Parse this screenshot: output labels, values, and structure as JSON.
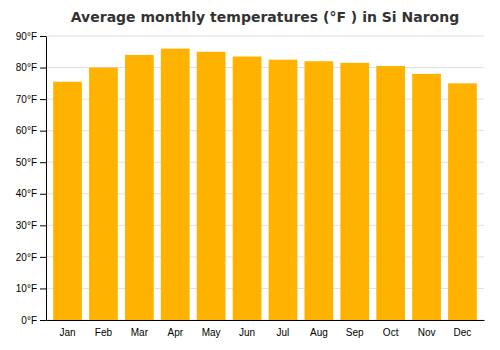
{
  "chart_data": {
    "type": "bar",
    "title": "Average monthly temperatures (°F ) in Si Narong",
    "categories": [
      "Jan",
      "Feb",
      "Mar",
      "Apr",
      "May",
      "Jun",
      "Jul",
      "Aug",
      "Sep",
      "Oct",
      "Nov",
      "Dec"
    ],
    "values": [
      75.5,
      80.0,
      84.0,
      86.0,
      85.0,
      83.5,
      82.5,
      82.0,
      81.5,
      80.5,
      78.0,
      75.0
    ],
    "color": "#FFB300",
    "ylim": [
      0,
      90
    ],
    "yticks": [
      {
        "value": 0,
        "label": "0°F"
      },
      {
        "value": 10,
        "label": "10°F"
      },
      {
        "value": 20,
        "label": "20°F"
      },
      {
        "value": 30,
        "label": "30°F"
      },
      {
        "value": 40,
        "label": "40°F"
      },
      {
        "value": 50,
        "label": "50°F"
      },
      {
        "value": 60,
        "label": "60°F"
      },
      {
        "value": 70,
        "label": "70°F"
      },
      {
        "value": 80,
        "label": "80°F"
      },
      {
        "value": 90,
        "label": "90°F"
      }
    ],
    "grid": true
  }
}
